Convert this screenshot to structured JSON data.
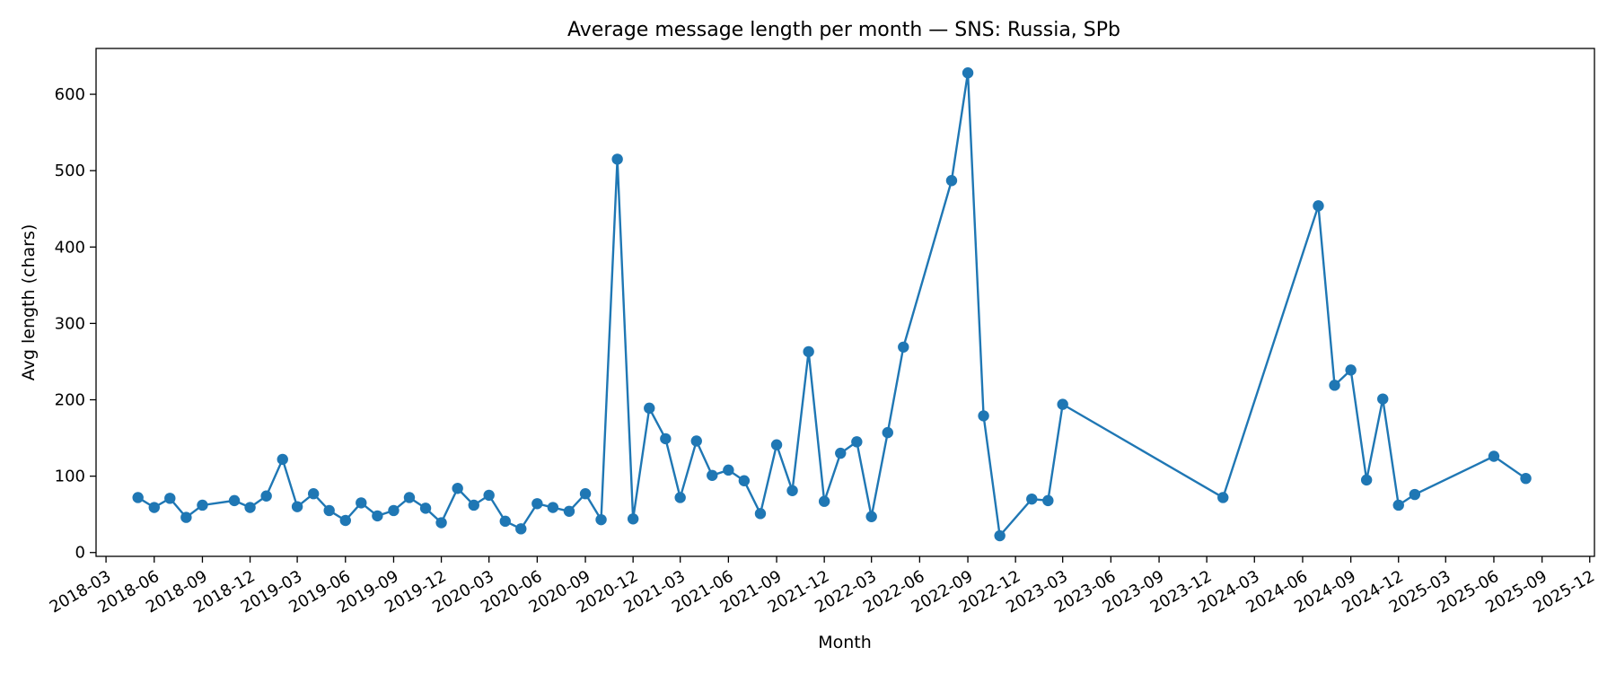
{
  "chart_data": {
    "type": "line",
    "title": "Average message length per month — SNS: Russia, SPb",
    "xlabel": "Month",
    "ylabel": "Avg length (chars)",
    "x_scale": "date",
    "xlim": [
      "2018-02-10",
      "2025-12-10"
    ],
    "ylim": [
      -5,
      660
    ],
    "y_ticks": [
      0,
      100,
      200,
      300,
      400,
      500,
      600
    ],
    "x_ticks": [
      "2018-03",
      "2018-06",
      "2018-09",
      "2018-12",
      "2019-03",
      "2019-06",
      "2019-09",
      "2019-12",
      "2020-03",
      "2020-06",
      "2020-09",
      "2020-12",
      "2021-03",
      "2021-06",
      "2021-09",
      "2021-12",
      "2022-03",
      "2022-06",
      "2022-09",
      "2022-12",
      "2023-03",
      "2023-06",
      "2023-09",
      "2023-12",
      "2024-03",
      "2024-06",
      "2024-09",
      "2024-12",
      "2025-03",
      "2025-06",
      "2025-09",
      "2025-12"
    ],
    "grid": false,
    "legend": "none",
    "color": "#1f77b4",
    "series": [
      {
        "x": [
          "2018-05",
          "2018-06",
          "2018-07",
          "2018-08",
          "2018-09",
          "2018-11",
          "2018-12",
          "2019-01",
          "2019-02",
          "2019-03",
          "2019-04",
          "2019-05",
          "2019-06",
          "2019-07",
          "2019-08",
          "2019-09",
          "2019-10",
          "2019-11",
          "2019-12",
          "2020-01",
          "2020-02",
          "2020-03",
          "2020-04",
          "2020-05",
          "2020-06",
          "2020-07",
          "2020-08",
          "2020-09",
          "2020-10",
          "2020-11",
          "2020-12",
          "2021-01",
          "2021-02",
          "2021-03",
          "2021-04",
          "2021-05",
          "2021-06",
          "2021-07",
          "2021-08",
          "2021-09",
          "2021-10",
          "2021-11",
          "2021-12",
          "2022-01",
          "2022-02",
          "2022-03",
          "2022-04",
          "2022-05",
          "2022-08",
          "2022-09",
          "2022-10",
          "2022-11",
          "2023-01",
          "2023-02",
          "2023-03",
          "2024-01",
          "2024-07",
          "2024-08",
          "2024-09",
          "2024-10",
          "2024-11",
          "2024-12",
          "2025-01",
          "2025-06",
          "2025-08"
        ],
        "values": [
          72,
          59,
          71,
          46,
          62,
          68,
          59,
          74,
          122,
          60,
          77,
          55,
          42,
          65,
          48,
          55,
          72,
          58,
          39,
          84,
          62,
          75,
          41,
          31,
          64,
          59,
          54,
          77,
          43,
          515,
          44,
          189,
          149,
          72,
          146,
          101,
          108,
          94,
          51,
          141,
          81,
          263,
          67,
          130,
          145,
          47,
          157,
          269,
          487,
          628,
          179,
          22,
          70,
          68,
          194,
          72,
          454,
          219,
          239,
          95,
          201,
          62,
          76,
          126,
          97
        ]
      }
    ]
  }
}
